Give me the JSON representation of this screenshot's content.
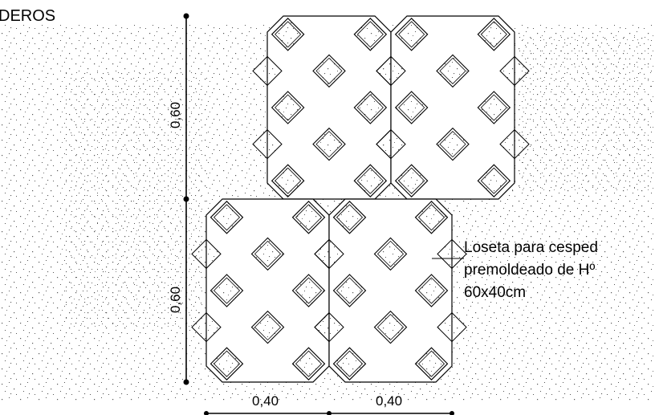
{
  "header": {
    "title": "DEROS"
  },
  "dimensions": {
    "vertical_upper": "0,60",
    "vertical_lower": "0,60",
    "horizontal_left": "0,40",
    "horizontal_right": "0,40"
  },
  "annotation": {
    "line1": "Loseta para cesped",
    "line2": "premoldeado de Hº",
    "line3": "60x40cm"
  },
  "colors": {
    "line": "#000000",
    "background": "#ffffff",
    "speckle": "#555555"
  }
}
